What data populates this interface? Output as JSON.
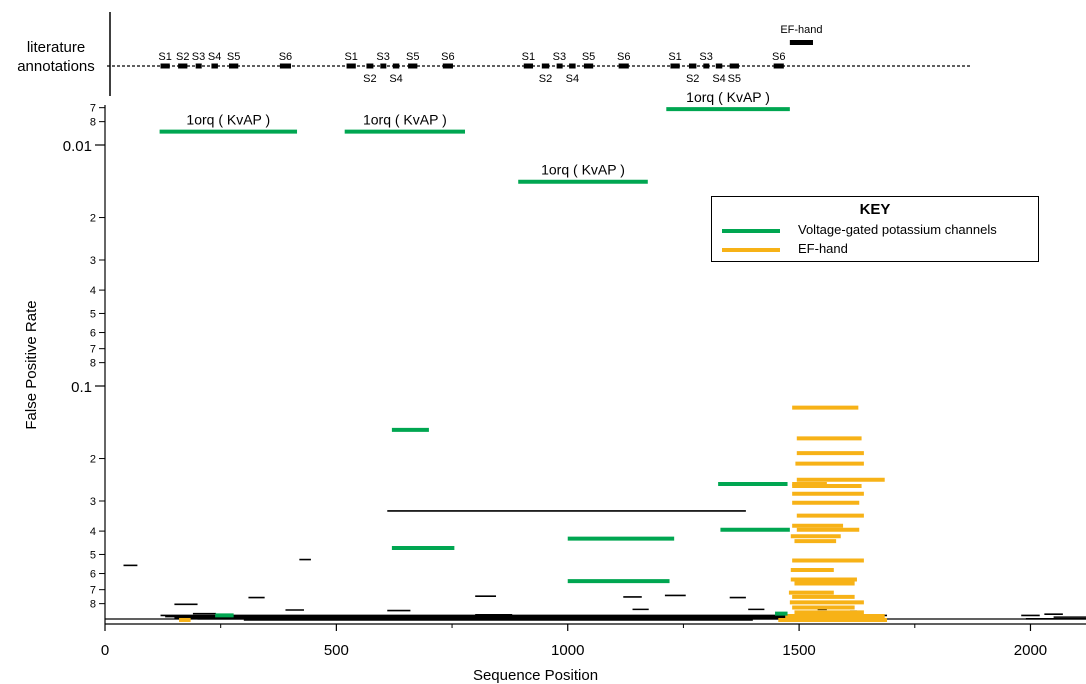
{
  "chart_data": {
    "type": "scatter",
    "xlabel": "Sequence Position",
    "ylabel": "False Positive Rate",
    "x_ticks": [
      "0",
      "500",
      "1000",
      "1500",
      "2000"
    ],
    "xlim": [
      0,
      2120
    ],
    "y_scale": "log",
    "y_major_ticks": [
      "0.01",
      "0.1"
    ],
    "y_minor_ticks": [
      "7",
      "8",
      "2",
      "3",
      "4",
      "5",
      "6",
      "7",
      "8",
      "2",
      "3",
      "4",
      "5",
      "6",
      "7",
      "8"
    ],
    "grid": false,
    "legend": {
      "placement": "top-right",
      "title": "KEY",
      "entries": [
        {
          "label": "Voltage-gated potassium channels",
          "color": "#00a651"
        },
        {
          "label": "EF-hand",
          "color": "#f7b217"
        }
      ]
    },
    "literature_annotations": {
      "label": "literature annotations",
      "segments": [
        {
          "label": "S1",
          "x": [
            120,
            140
          ]
        },
        {
          "label": "S2",
          "x": [
            158,
            178
          ]
        },
        {
          "label": "S3",
          "x": [
            196,
            208
          ]
        },
        {
          "label": "S4",
          "x": [
            230,
            244
          ]
        },
        {
          "label": "S5",
          "x": [
            268,
            288
          ]
        },
        {
          "label": "S6",
          "x": [
            378,
            402
          ]
        },
        {
          "label": "S1",
          "x": [
            522,
            542
          ]
        },
        {
          "label": "S2",
          "x": [
            565,
            580
          ]
        },
        {
          "label": "S3",
          "x": [
            595,
            607
          ]
        },
        {
          "label": "S4",
          "x": [
            622,
            636
          ]
        },
        {
          "label": "S5",
          "x": [
            655,
            675
          ]
        },
        {
          "label": "S6",
          "x": [
            730,
            752
          ]
        },
        {
          "label": "S1",
          "x": [
            905,
            925
          ]
        },
        {
          "label": "S2",
          "x": [
            944,
            960
          ]
        },
        {
          "label": "S3",
          "x": [
            976,
            988
          ]
        },
        {
          "label": "S4",
          "x": [
            1003,
            1017
          ]
        },
        {
          "label": "S5",
          "x": [
            1035,
            1055
          ]
        },
        {
          "label": "S6",
          "x": [
            1110,
            1132
          ]
        },
        {
          "label": "S1",
          "x": [
            1222,
            1242
          ]
        },
        {
          "label": "S2",
          "x": [
            1262,
            1278
          ]
        },
        {
          "label": "S3",
          "x": [
            1293,
            1305
          ]
        },
        {
          "label": "S4",
          "x": [
            1320,
            1334
          ]
        },
        {
          "label": "S5",
          "x": [
            1350,
            1370
          ]
        },
        {
          "label": "S6",
          "x": [
            1445,
            1467
          ]
        }
      ],
      "ef_hand": {
        "label": "EF-hand",
        "x": [
          1480,
          1530
        ]
      }
    },
    "series": [
      {
        "name": "Voltage-gated potassium channels",
        "color": "#00a651",
        "segments": [
          {
            "x": [
              118,
              415
            ],
            "y": 0.0088,
            "label": "1orq ( KvAP )"
          },
          {
            "x": [
              518,
              778
            ],
            "y": 0.0088,
            "label": "1orq ( KvAP )"
          },
          {
            "x": [
              893,
              1173
            ],
            "y": 0.0142,
            "label": "1orq ( KvAP )"
          },
          {
            "x": [
              1213,
              1480
            ],
            "y": 0.0071,
            "label": "1orq ( KvAP )"
          },
          {
            "x": [
              620,
              700
            ],
            "y": 0.152
          },
          {
            "x": [
              620,
              755
            ],
            "y": 0.47
          },
          {
            "x": [
              1000,
              1230
            ],
            "y": 0.43
          },
          {
            "x": [
              1000,
              1220
            ],
            "y": 0.645
          },
          {
            "x": [
              1325,
              1475
            ],
            "y": 0.255
          },
          {
            "x": [
              1330,
              1480
            ],
            "y": 0.395
          },
          {
            "x": [
              238,
              278
            ],
            "y": 0.895
          },
          {
            "x": [
              1448,
              1475
            ],
            "y": 0.88
          }
        ]
      },
      {
        "name": "EF-hand",
        "color": "#f7b217",
        "segments": [
          {
            "x": [
              1485,
              1628
            ],
            "y": 0.123
          },
          {
            "x": [
              1495,
              1635
            ],
            "y": 0.165
          },
          {
            "x": [
              1495,
              1640
            ],
            "y": 0.19
          },
          {
            "x": [
              1492,
              1640
            ],
            "y": 0.21
          },
          {
            "x": [
              1495,
              1685
            ],
            "y": 0.245
          },
          {
            "x": [
              1485,
              1560
            ],
            "y": 0.255
          },
          {
            "x": [
              1485,
              1635
            ],
            "y": 0.26
          },
          {
            "x": [
              1485,
              1640
            ],
            "y": 0.28
          },
          {
            "x": [
              1485,
              1630
            ],
            "y": 0.305
          },
          {
            "x": [
              1495,
              1640
            ],
            "y": 0.345
          },
          {
            "x": [
              1495,
              1630
            ],
            "y": 0.395
          },
          {
            "x": [
              1485,
              1595
            ],
            "y": 0.38
          },
          {
            "x": [
              1482,
              1590
            ],
            "y": 0.42
          },
          {
            "x": [
              1490,
              1580
            ],
            "y": 0.44
          },
          {
            "x": [
              1485,
              1640
            ],
            "y": 0.53
          },
          {
            "x": [
              1482,
              1575
            ],
            "y": 0.58
          },
          {
            "x": [
              1482,
              1625
            ],
            "y": 0.635
          },
          {
            "x": [
              1490,
              1620
            ],
            "y": 0.66
          },
          {
            "x": [
              1478,
              1575
            ],
            "y": 0.72
          },
          {
            "x": [
              1485,
              1620
            ],
            "y": 0.75
          },
          {
            "x": [
              1480,
              1640
            ],
            "y": 0.79
          },
          {
            "x": [
              1485,
              1620
            ],
            "y": 0.83
          },
          {
            "x": [
              1490,
              1640
            ],
            "y": 0.87
          },
          {
            "x": [
              1470,
              1685
            ],
            "y": 0.9
          },
          {
            "x": [
              1455,
              1690
            ],
            "y": 0.935
          },
          {
            "x": [
              160,
              185
            ],
            "y": 0.935
          }
        ]
      },
      {
        "color": "#000000",
        "segments": [
          {
            "x": [
              610,
              1385
            ],
            "y": 0.33
          },
          {
            "x": [
              40,
              70
            ],
            "y": 0.555
          },
          {
            "x": [
              420,
              445
            ],
            "y": 0.525
          },
          {
            "x": [
              150,
              200
            ],
            "y": 0.805
          },
          {
            "x": [
              310,
              345
            ],
            "y": 0.755
          },
          {
            "x": [
              800,
              845
            ],
            "y": 0.745
          },
          {
            "x": [
              1120,
              1160
            ],
            "y": 0.75
          },
          {
            "x": [
              1210,
              1255
            ],
            "y": 0.74
          },
          {
            "x": [
              1350,
              1385
            ],
            "y": 0.755
          },
          {
            "x": [
              390,
              430
            ],
            "y": 0.85
          },
          {
            "x": [
              610,
              660
            ],
            "y": 0.855
          },
          {
            "x": [
              1140,
              1175
            ],
            "y": 0.845
          },
          {
            "x": [
              1390,
              1425
            ],
            "y": 0.845
          },
          {
            "x": [
              1540,
              1560
            ],
            "y": 0.845
          },
          {
            "x": [
              1610,
              1625
            ],
            "y": 0.86
          },
          {
            "x": [
              190,
              240
            ],
            "y": 0.88
          },
          {
            "x": [
              800,
              880
            ],
            "y": 0.89
          },
          {
            "x": [
              120,
              1690
            ],
            "y": 0.895
          },
          {
            "x": [
              130,
              1670
            ],
            "y": 0.905
          },
          {
            "x": [
              150,
              1660
            ],
            "y": 0.915
          },
          {
            "x": [
              200,
              1500
            ],
            "y": 0.925
          },
          {
            "x": [
              300,
              1400
            ],
            "y": 0.935
          },
          {
            "x": [
              1980,
              2020
            ],
            "y": 0.895
          },
          {
            "x": [
              2030,
              2070
            ],
            "y": 0.885
          },
          {
            "x": [
              2050,
              2120
            ],
            "y": 0.91
          },
          {
            "x": [
              1990,
              2120
            ],
            "y": 0.925
          }
        ]
      }
    ]
  }
}
